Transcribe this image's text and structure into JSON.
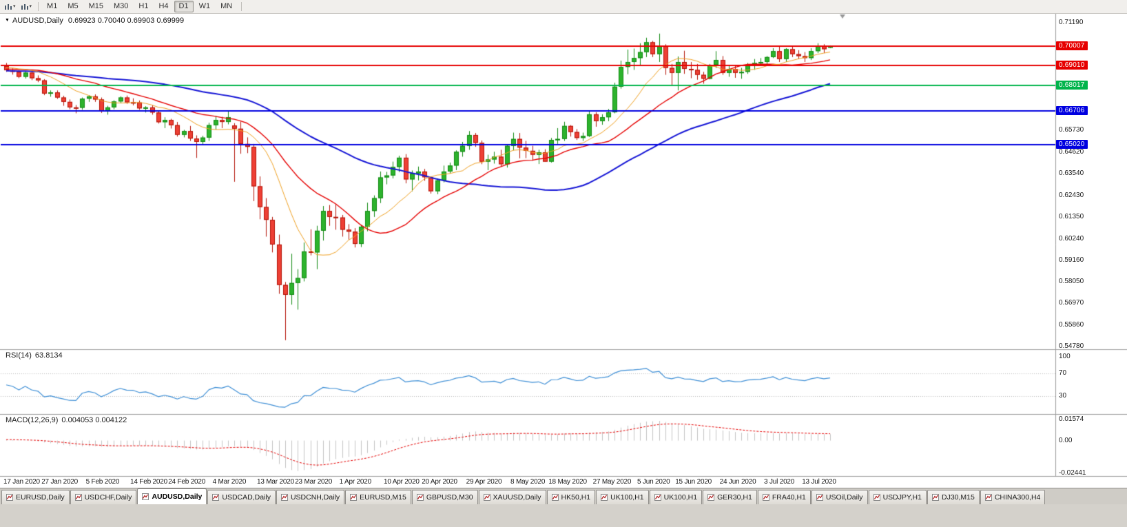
{
  "toolbar": {
    "icons": [
      "candlestick-chart-icon",
      "chart-template-icon"
    ],
    "timeframes": [
      "M1",
      "M5",
      "M15",
      "M30",
      "H1",
      "H4",
      "D1",
      "W1",
      "MN"
    ],
    "active_timeframe": "D1"
  },
  "title_bar": {
    "symbol": "AUDUSD,Daily",
    "ohlc": "0.69923 0.70040 0.69903 0.69999"
  },
  "tabs": {
    "active": "AUDUSD,Daily",
    "items": [
      "EURUSD,Daily",
      "USDCHF,Daily",
      "AUDUSD,Daily",
      "USDCAD,Daily",
      "USDCNH,Daily",
      "EURUSD,M15",
      "GBPUSD,M30",
      "XAUUSD,Daily",
      "HK50,H1",
      "UK100,H1",
      "UK100,H1",
      "GER30,H1",
      "FRA40,H1",
      "USOil,Daily",
      "USDJPY,H1",
      "DJ30,M15",
      "CHINA300,H4"
    ]
  },
  "chart_data": {
    "type": "candlestick",
    "symbol": "AUDUSD",
    "timeframe": "Daily",
    "current_bar": {
      "open": 0.69923,
      "high": 0.7004,
      "low": 0.69903,
      "close": 0.69999
    },
    "candle_colors": {
      "up_fill": "#2db32d",
      "up_border": "#128a12",
      "down_fill": "#ee4035",
      "down_border": "#b31206"
    },
    "y_axis": {
      "max": 0.7119,
      "min": 0.5478,
      "plain_labels": [
        "0.71190",
        "0.65730",
        "0.64620",
        "0.63540",
        "0.62430",
        "0.61350",
        "0.60240",
        "0.59160",
        "0.58050",
        "0.56970",
        "0.55860",
        "0.54780"
      ]
    },
    "horizontal_lines": [
      {
        "label": "0.70007",
        "price": 0.70007,
        "color": "#e60000"
      },
      {
        "label": "0.69010",
        "price": 0.6901,
        "color": "#e60000"
      },
      {
        "label": "0.68017",
        "price": 0.68017,
        "color": "#00b44b"
      },
      {
        "label": "0.66706",
        "price": 0.66706,
        "color": "#0000e0"
      },
      {
        "label": "0.65020",
        "price": 0.6502,
        "color": "#0000e0"
      }
    ],
    "moving_averages": [
      {
        "period": 50,
        "color": "#1616d6",
        "width": 2
      },
      {
        "period": 21,
        "color": "#e60000",
        "width": 1.4
      },
      {
        "period": 10,
        "color": "#f0a020",
        "width": 1
      }
    ],
    "x_labels": [
      "17 Jan 2020",
      "27 Jan 2020",
      "5 Feb 2020",
      "14 Feb 2020",
      "24 Feb 2020",
      "4 Mar 2020",
      "13 Mar 2020",
      "23 Mar 2020",
      "1 Apr 2020",
      "10 Apr 2020",
      "20 Apr 2020",
      "29 Apr 2020",
      "8 May 2020",
      "18 May 2020",
      "27 May 2020",
      "5 Jun 2020",
      "15 Jun 2020",
      "24 Jun 2020",
      "3 Jul 2020",
      "13 Jul 2020"
    ],
    "x_label_candle_indices": [
      0,
      6,
      13,
      20,
      26,
      33,
      40,
      46,
      53,
      60,
      66,
      73,
      80,
      86,
      93,
      100,
      106,
      113,
      120,
      126
    ],
    "candles": [
      [
        0.69,
        0.6915,
        0.687,
        0.6878
      ],
      [
        0.6878,
        0.6888,
        0.6856,
        0.687
      ],
      [
        0.687,
        0.6878,
        0.6838,
        0.6845
      ],
      [
        0.6845,
        0.6872,
        0.6836,
        0.6866
      ],
      [
        0.6866,
        0.6876,
        0.6828,
        0.6838
      ],
      [
        0.6838,
        0.6852,
        0.6818,
        0.6827
      ],
      [
        0.6827,
        0.6833,
        0.6752,
        0.676
      ],
      [
        0.676,
        0.6776,
        0.6744,
        0.6766
      ],
      [
        0.6766,
        0.6776,
        0.6733,
        0.674
      ],
      [
        0.674,
        0.6749,
        0.6698,
        0.6718
      ],
      [
        0.6718,
        0.673,
        0.668,
        0.669
      ],
      [
        0.669,
        0.6702,
        0.666,
        0.6688
      ],
      [
        0.6688,
        0.674,
        0.6678,
        0.6734
      ],
      [
        0.6734,
        0.6752,
        0.6718,
        0.6746
      ],
      [
        0.6746,
        0.6756,
        0.6718,
        0.673
      ],
      [
        0.673,
        0.674,
        0.6662,
        0.667
      ],
      [
        0.667,
        0.6698,
        0.6653,
        0.669
      ],
      [
        0.669,
        0.6726,
        0.668,
        0.672
      ],
      [
        0.672,
        0.6746,
        0.671,
        0.674
      ],
      [
        0.674,
        0.675,
        0.6708,
        0.6716
      ],
      [
        0.6716,
        0.6736,
        0.67,
        0.6715
      ],
      [
        0.6715,
        0.6725,
        0.6678,
        0.6685
      ],
      [
        0.6685,
        0.6696,
        0.6664,
        0.669
      ],
      [
        0.669,
        0.67,
        0.6653,
        0.6664
      ],
      [
        0.6664,
        0.6675,
        0.6608,
        0.6615
      ],
      [
        0.6615,
        0.664,
        0.6585,
        0.6626
      ],
      [
        0.6626,
        0.6632,
        0.6583,
        0.66
      ],
      [
        0.66,
        0.6616,
        0.6542,
        0.6551
      ],
      [
        0.6551,
        0.6576,
        0.6538,
        0.657
      ],
      [
        0.657,
        0.6596,
        0.652,
        0.6532
      ],
      [
        0.6532,
        0.6548,
        0.6434,
        0.6515
      ],
      [
        0.6515,
        0.6546,
        0.6504,
        0.6537
      ],
      [
        0.6537,
        0.6612,
        0.652,
        0.66
      ],
      [
        0.66,
        0.6646,
        0.6578,
        0.6626
      ],
      [
        0.6626,
        0.6642,
        0.6585,
        0.6616
      ],
      [
        0.6616,
        0.6672,
        0.6604,
        0.664
      ],
      [
        0.6598,
        0.661,
        0.6313,
        0.6582
      ],
      [
        0.6582,
        0.6618,
        0.6455,
        0.6505
      ],
      [
        0.6505,
        0.6538,
        0.6458,
        0.649
      ],
      [
        0.649,
        0.6505,
        0.6215,
        0.629
      ],
      [
        0.629,
        0.634,
        0.6123,
        0.6185
      ],
      [
        0.6185,
        0.623,
        0.6035,
        0.612
      ],
      [
        0.612,
        0.6135,
        0.5955,
        0.5995
      ],
      [
        0.5995,
        0.6045,
        0.5745,
        0.579
      ],
      [
        0.579,
        0.5805,
        0.551,
        0.574
      ],
      [
        0.574,
        0.5948,
        0.569,
        0.58
      ],
      [
        0.58,
        0.587,
        0.5665,
        0.5825
      ],
      [
        0.5825,
        0.6005,
        0.5808,
        0.596
      ],
      [
        0.596,
        0.6072,
        0.594,
        0.5955
      ],
      [
        0.5955,
        0.609,
        0.587,
        0.6065
      ],
      [
        0.6065,
        0.619,
        0.6015,
        0.6165
      ],
      [
        0.6165,
        0.6195,
        0.609,
        0.6135
      ],
      [
        0.6135,
        0.62,
        0.607,
        0.6132
      ],
      [
        0.6132,
        0.6145,
        0.6035,
        0.607
      ],
      [
        0.607,
        0.6098,
        0.602,
        0.606
      ],
      [
        0.606,
        0.6078,
        0.598,
        0.5998
      ],
      [
        0.5998,
        0.6095,
        0.5982,
        0.6085
      ],
      [
        0.6085,
        0.6207,
        0.6062,
        0.6165
      ],
      [
        0.6165,
        0.6244,
        0.6135,
        0.623
      ],
      [
        0.623,
        0.6365,
        0.6205,
        0.6335
      ],
      [
        0.6335,
        0.6363,
        0.63,
        0.6345
      ],
      [
        0.6345,
        0.6415,
        0.633,
        0.6388
      ],
      [
        0.6388,
        0.6445,
        0.6362,
        0.6435
      ],
      [
        0.6435,
        0.6453,
        0.6305,
        0.6325
      ],
      [
        0.6325,
        0.637,
        0.6265,
        0.6355
      ],
      [
        0.6355,
        0.639,
        0.632,
        0.6365
      ],
      [
        0.6365,
        0.6378,
        0.6318,
        0.6336
      ],
      [
        0.6336,
        0.634,
        0.6253,
        0.6265
      ],
      [
        0.6265,
        0.633,
        0.625,
        0.632
      ],
      [
        0.632,
        0.6395,
        0.631,
        0.6365
      ],
      [
        0.6365,
        0.641,
        0.6355,
        0.6395
      ],
      [
        0.6395,
        0.6472,
        0.6372,
        0.6465
      ],
      [
        0.6465,
        0.6515,
        0.644,
        0.6495
      ],
      [
        0.6495,
        0.657,
        0.6475,
        0.655
      ],
      [
        0.655,
        0.656,
        0.649,
        0.651
      ],
      [
        0.651,
        0.6522,
        0.6402,
        0.6415
      ],
      [
        0.6415,
        0.645,
        0.6372,
        0.6426
      ],
      [
        0.6426,
        0.6465,
        0.6405,
        0.644
      ],
      [
        0.644,
        0.6475,
        0.639,
        0.6402
      ],
      [
        0.6402,
        0.65,
        0.6385,
        0.6495
      ],
      [
        0.6495,
        0.6562,
        0.6472,
        0.653
      ],
      [
        0.653,
        0.656,
        0.6432,
        0.6486
      ],
      [
        0.6486,
        0.652,
        0.6433,
        0.647
      ],
      [
        0.647,
        0.6495,
        0.642,
        0.645
      ],
      [
        0.645,
        0.6475,
        0.6403,
        0.6462
      ],
      [
        0.6462,
        0.6478,
        0.6415,
        0.6415
      ],
      [
        0.6415,
        0.6535,
        0.641,
        0.6525
      ],
      [
        0.6525,
        0.6585,
        0.6505,
        0.653
      ],
      [
        0.653,
        0.6617,
        0.652,
        0.6596
      ],
      [
        0.6596,
        0.66,
        0.6542,
        0.6565
      ],
      [
        0.6565,
        0.658,
        0.6525,
        0.6535
      ],
      [
        0.6535,
        0.6562,
        0.652,
        0.6545
      ],
      [
        0.6545,
        0.6675,
        0.654,
        0.6655
      ],
      [
        0.6655,
        0.6665,
        0.6592,
        0.662
      ],
      [
        0.662,
        0.6655,
        0.6602,
        0.664
      ],
      [
        0.664,
        0.6682,
        0.662,
        0.6665
      ],
      [
        0.6665,
        0.6815,
        0.666,
        0.6795
      ],
      [
        0.6795,
        0.6927,
        0.6785,
        0.6895
      ],
      [
        0.6895,
        0.6983,
        0.6858,
        0.692
      ],
      [
        0.692,
        0.6988,
        0.688,
        0.694
      ],
      [
        0.694,
        0.7015,
        0.69,
        0.697
      ],
      [
        0.697,
        0.7043,
        0.6945,
        0.702
      ],
      [
        0.702,
        0.7027,
        0.6945,
        0.696
      ],
      [
        0.696,
        0.7064,
        0.692,
        0.7
      ],
      [
        0.7,
        0.701,
        0.6855,
        0.689
      ],
      [
        0.689,
        0.691,
        0.68,
        0.6865
      ],
      [
        0.6865,
        0.6948,
        0.6776,
        0.692
      ],
      [
        0.692,
        0.6977,
        0.686,
        0.6885
      ],
      [
        0.6885,
        0.692,
        0.6838,
        0.688
      ],
      [
        0.688,
        0.691,
        0.683,
        0.6855
      ],
      [
        0.6855,
        0.687,
        0.681,
        0.6835
      ],
      [
        0.6835,
        0.691,
        0.6832,
        0.6905
      ],
      [
        0.6905,
        0.6975,
        0.689,
        0.693
      ],
      [
        0.693,
        0.695,
        0.6855,
        0.6865
      ],
      [
        0.6865,
        0.6905,
        0.6845,
        0.6885
      ],
      [
        0.6885,
        0.69,
        0.684,
        0.6865
      ],
      [
        0.6865,
        0.689,
        0.6835,
        0.687
      ],
      [
        0.687,
        0.6915,
        0.686,
        0.6905
      ],
      [
        0.6905,
        0.6935,
        0.688,
        0.6915
      ],
      [
        0.6915,
        0.694,
        0.69,
        0.692
      ],
      [
        0.692,
        0.695,
        0.69,
        0.6945
      ],
      [
        0.6945,
        0.699,
        0.694,
        0.6975
      ],
      [
        0.6975,
        0.6998,
        0.692,
        0.6935
      ],
      [
        0.6935,
        0.699,
        0.692,
        0.6985
      ],
      [
        0.6985,
        0.7,
        0.6945,
        0.696
      ],
      [
        0.696,
        0.698,
        0.6935,
        0.695
      ],
      [
        0.695,
        0.697,
        0.692,
        0.694
      ],
      [
        0.694,
        0.699,
        0.693,
        0.6975
      ],
      [
        0.6975,
        0.7015,
        0.6965,
        0.7
      ],
      [
        0.7,
        0.701,
        0.6965,
        0.6985
      ],
      [
        0.69923,
        0.7004,
        0.69903,
        0.69999
      ]
    ],
    "indicators": {
      "rsi": {
        "label": "RSI(14)",
        "value": "63.8134",
        "period": 14,
        "levels": [
          70,
          30
        ],
        "axis_labels": [
          "100",
          "70",
          "30"
        ],
        "color": "#3e8fd6"
      },
      "macd": {
        "label": "MACD(12,26,9)",
        "values": "0.004053 0.004122",
        "fast": 12,
        "slow": 26,
        "signal": 9,
        "axis_labels": [
          "0.01574",
          "0.00",
          "-0.02441"
        ],
        "histogram_color": "#c4c4c4",
        "signal_color": "#e60000"
      }
    }
  }
}
